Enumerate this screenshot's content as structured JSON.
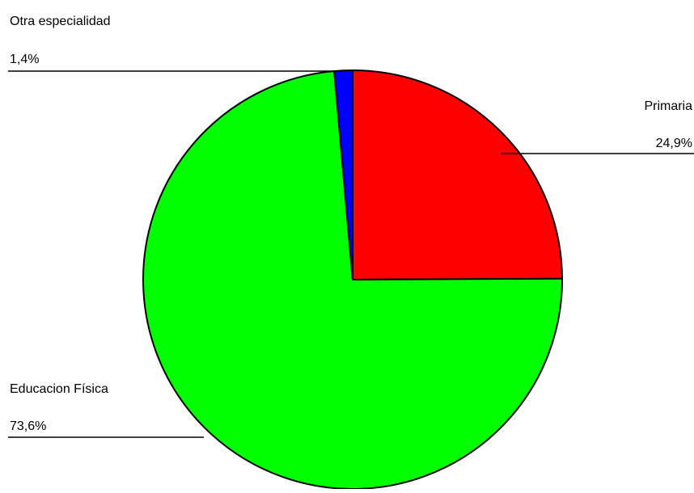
{
  "chart_data": {
    "type": "pie",
    "title": "",
    "start_angle_deg": 90,
    "direction": "clockwise",
    "slices": [
      {
        "label": "Primaria",
        "value_label": "24,9%",
        "value": 24.9,
        "color": "#ff0000"
      },
      {
        "label": "Educacion Física",
        "value_label": "73,6%",
        "value": 73.6,
        "color": "#00ff00"
      },
      {
        "label": "Otra especialidad",
        "value_label": "1,4%",
        "value": 1.4,
        "color": "#0000ff"
      }
    ],
    "legend": "none",
    "outline_color": "#000000"
  }
}
